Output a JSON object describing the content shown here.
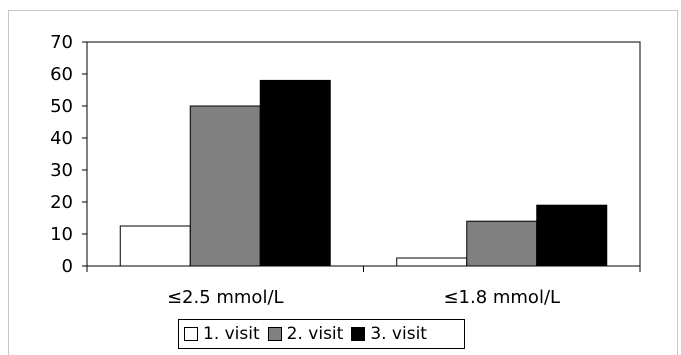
{
  "chart_data": {
    "type": "bar",
    "categories": [
      "≤2.5 mmol/L",
      "≤1.8 mmol/L"
    ],
    "series": [
      {
        "name": "1. visit",
        "values": [
          12.5,
          2.5
        ],
        "color": "#ffffff"
      },
      {
        "name": "2. visit",
        "values": [
          50,
          14
        ],
        "color": "#808080"
      },
      {
        "name": "3. visit",
        "values": [
          58,
          19
        ],
        "color": "#000000"
      }
    ],
    "ylim": [
      0,
      70
    ],
    "yticks": [
      0,
      10,
      20,
      30,
      40,
      50,
      60,
      70
    ],
    "grid": false,
    "legend": "bottom"
  }
}
